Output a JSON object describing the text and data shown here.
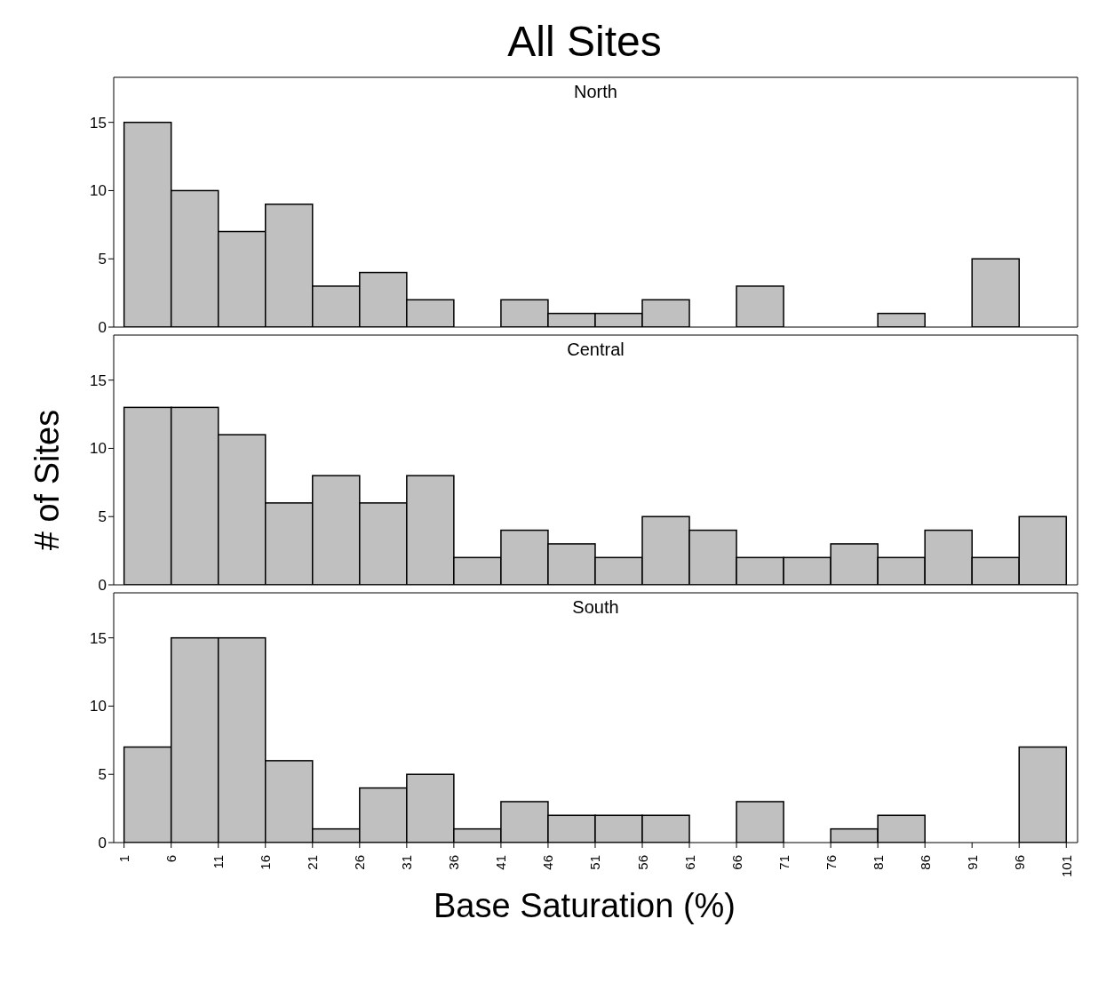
{
  "chart_data": [
    {
      "type": "histogram",
      "title": "All Sites",
      "subtitle": "North",
      "bins": [
        1,
        6,
        11,
        16,
        21,
        26,
        31,
        36,
        41,
        46,
        51,
        56,
        61,
        66,
        71,
        76,
        81,
        86,
        91,
        96,
        101
      ],
      "values": [
        15,
        10,
        7,
        9,
        3,
        4,
        2,
        0,
        2,
        1,
        1,
        2,
        0,
        3,
        0,
        0,
        1,
        0,
        5,
        0
      ],
      "color": "#c0c0c0",
      "xlim": [
        -0.1,
        102.2
      ],
      "ylim": [
        0,
        18.3
      ],
      "yticks": [
        0,
        5,
        10,
        15
      ],
      "tick_labels": "y"
    },
    {
      "type": "histogram",
      "ylabel": "# of Sites",
      "subtitle": "Central",
      "bins": [
        1,
        6,
        11,
        16,
        21,
        26,
        31,
        36,
        41,
        46,
        51,
        56,
        61,
        66,
        71,
        76,
        81,
        86,
        91,
        96,
        101
      ],
      "values": [
        13,
        13,
        11,
        6,
        8,
        6,
        8,
        2,
        4,
        3,
        2,
        5,
        4,
        2,
        2,
        3,
        2,
        4,
        2,
        5
      ],
      "color": "#c0c0c0",
      "xlim": [
        -0.1,
        102.2
      ],
      "ylim": [
        0,
        18.3
      ],
      "yticks": [
        0,
        5,
        10,
        15
      ],
      "tick_labels": "y"
    },
    {
      "type": "histogram",
      "xlabel": "Base Saturation (%)",
      "subtitle": "South",
      "bins": [
        1,
        6,
        11,
        16,
        21,
        26,
        31,
        36,
        41,
        46,
        51,
        56,
        61,
        66,
        71,
        76,
        81,
        86,
        91,
        96,
        101
      ],
      "values": [
        7,
        15,
        15,
        6,
        1,
        4,
        5,
        1,
        3,
        2,
        2,
        2,
        0,
        3,
        0,
        1,
        2,
        0,
        0,
        7
      ],
      "color": "#c0c0c0",
      "xlim": [
        -0.1,
        102.2
      ],
      "ylim": [
        0,
        18.3
      ],
      "yticks": [
        0,
        5,
        10,
        15
      ],
      "xticks": [
        1,
        6,
        11,
        16,
        21,
        26,
        31,
        36,
        41,
        46,
        51,
        56,
        61,
        66,
        71,
        76,
        81,
        86,
        91,
        96,
        101
      ]
    }
  ]
}
